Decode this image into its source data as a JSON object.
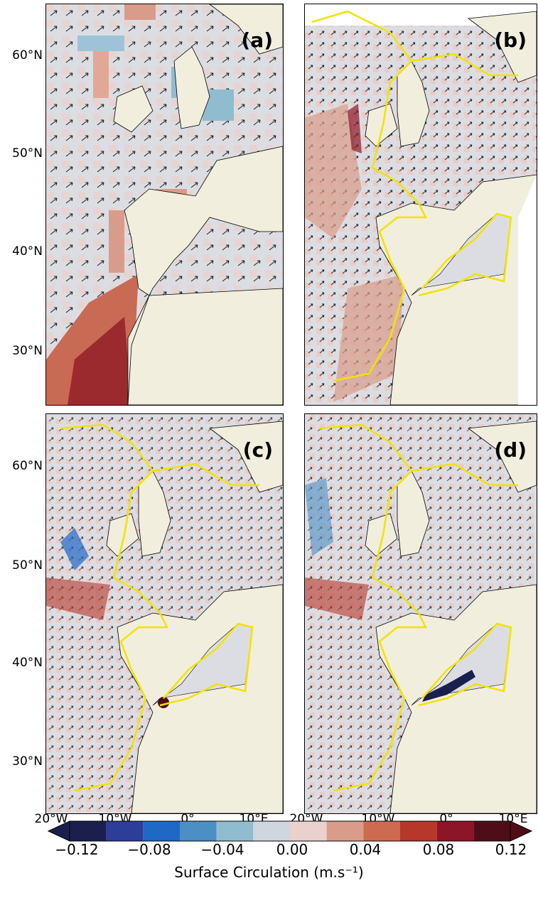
{
  "panels": [
    {
      "label": "(a)"
    },
    {
      "label": "(b)"
    },
    {
      "label": "(c)"
    },
    {
      "label": "(d)"
    }
  ],
  "lat_labels": [
    "60°N",
    "50°N",
    "40°N",
    "30°N"
  ],
  "lon_labels": [
    "20°W",
    "10°W",
    "0°",
    "10°E"
  ],
  "colorbar": {
    "title": "Surface Circulation (m.s⁻¹)",
    "ticks": [
      "−0.12",
      "−0.08",
      "−0.04",
      "0.00",
      "0.04",
      "0.08",
      "0.12"
    ],
    "colors": [
      "#1b1f4d",
      "#2d3d9a",
      "#1f68c6",
      "#4b8fc4",
      "#8fbccf",
      "#cfd6df",
      "#ead1cd",
      "#d99c8a",
      "#cc6b50",
      "#b5382b",
      "#8c1528",
      "#4f0e17"
    ]
  }
}
